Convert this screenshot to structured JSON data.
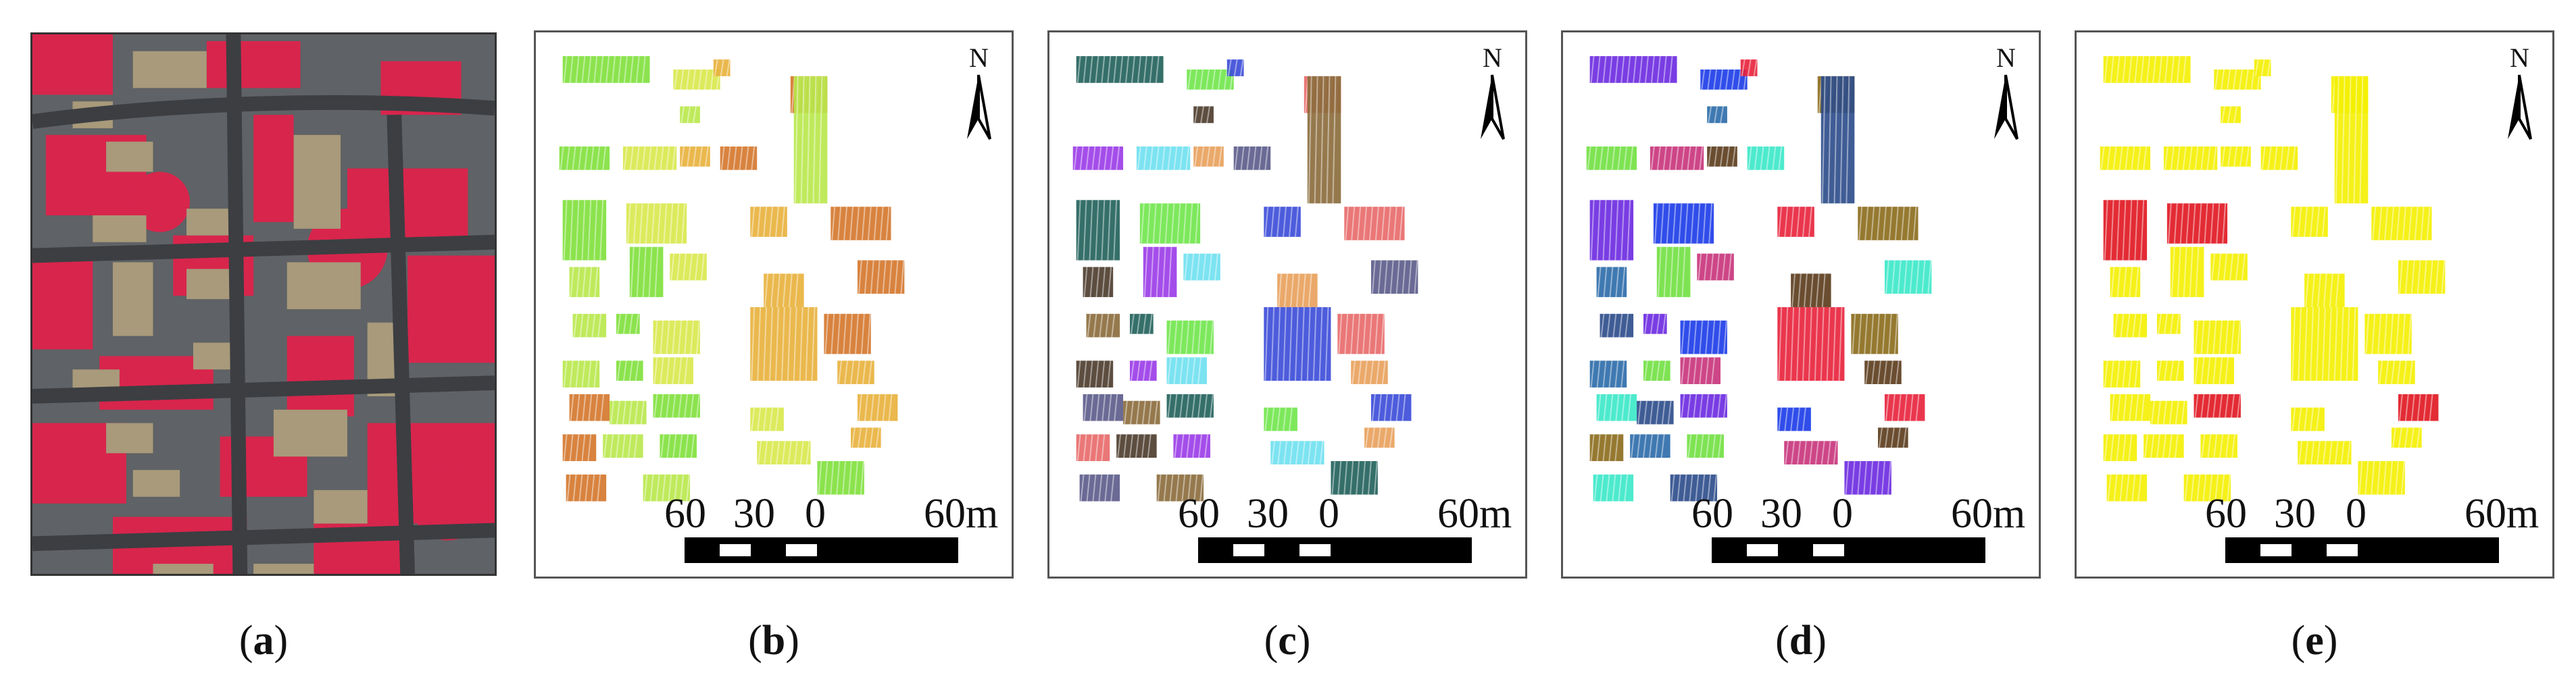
{
  "panels": [
    {
      "id": "a",
      "caption": "(a)",
      "caption_letter": "a"
    },
    {
      "id": "b",
      "caption": "(b)",
      "caption_letter": "b"
    },
    {
      "id": "c",
      "caption": "(c)",
      "caption_letter": "c"
    },
    {
      "id": "d",
      "caption": "(d)",
      "caption_letter": "d"
    },
    {
      "id": "e",
      "caption": "(e)",
      "caption_letter": "e"
    }
  ],
  "scale_bar": {
    "labels": [
      "60",
      "30",
      "0",
      "60m"
    ]
  },
  "north_arrow": {
    "label": "N"
  },
  "colors": {
    "aerial_road": "#5f6266",
    "aerial_vegetation": "#d8254c",
    "aerial_roof": "#a89a7a",
    "panel_b_palette": [
      "#7ee03a",
      "#d8e84a",
      "#e8b03a",
      "#d4762a",
      "#b8e84a"
    ],
    "panel_c_palette": [
      "#1f5f5a",
      "#6fe64a",
      "#3a4ad8",
      "#e86868",
      "#4a3a2a",
      "#9a3ae8",
      "#6ee0f0",
      "#e8a05a",
      "#5a5a8a",
      "#8a6a3a"
    ],
    "panel_d_palette": [
      "#6a28e0",
      "#1a3ae8",
      "#e8203a",
      "#8a6a1a",
      "#2a6aa8",
      "#70e040",
      "#c8327a",
      "#5a3a1a",
      "#3ae8c8",
      "#2a4a8a"
    ],
    "panel_e_main": "#f4f000",
    "panel_e_highlight": "#e0141e"
  }
}
